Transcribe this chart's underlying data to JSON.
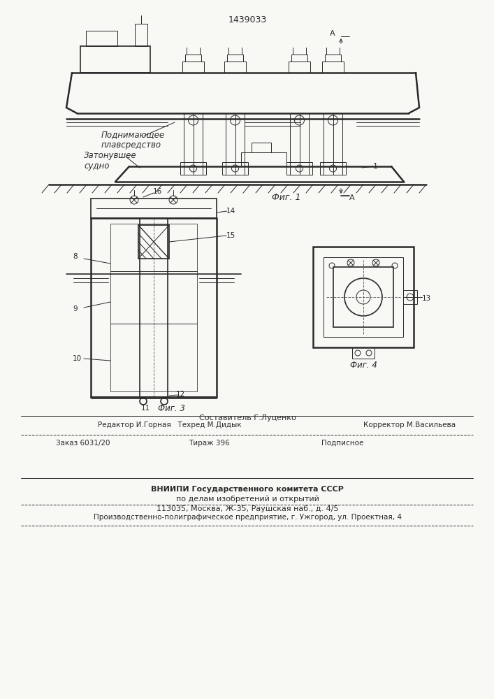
{
  "patent_number": "1439033",
  "bg_color": "#f8f8f5",
  "line_color": "#2a2a2a",
  "fig1_label": "Фиг. 1",
  "fig3_label": "Фиг. 3",
  "fig4_label": "Фиг. 4",
  "label_podnimayuschee": "Поднимающее\nплавсредство",
  "label_zatonuvsheye": "Затонувшее\nсудно",
  "ref_1": "1",
  "ref_8": "8",
  "ref_9": "9",
  "ref_10": "10",
  "ref_11": "11",
  "ref_12": "12",
  "ref_13": "13",
  "ref_14": "14",
  "ref_15": "15",
  "ref_16": "16",
  "editor_line1": "Редактор И.Горная   Техред М.Дидык",
  "editor_line2": "Корректор М.Васильева",
  "order_line1": "Заказ 6031/20",
  "order_line2": "Тираж 396",
  "order_line3": "Подписное",
  "org_line1": "ВНИИПИ Государственного комитета СССР",
  "org_line2": "по делам изобретений и открытий",
  "org_line3": "113035, Москва, Ж-35, Раушская наб., д. 4/5",
  "print_line": "Производственно-полиграфическое предприятие, г. Ужгород, ул. Проектная, 4",
  "sostavitel": "Составитель Г.Луценко"
}
